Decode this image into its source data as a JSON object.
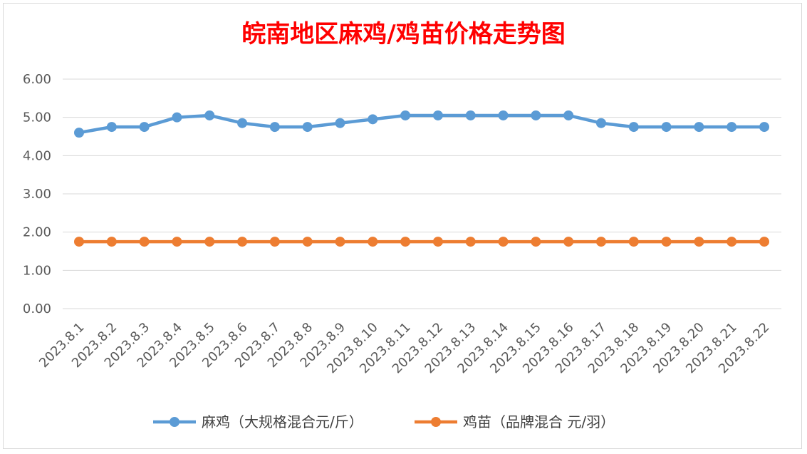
{
  "chart_data": {
    "type": "line",
    "title": "皖南地区麻鸡/鸡苗价格走势图",
    "categories": [
      "2023.8.1",
      "2023.8.2",
      "2023.8.3",
      "2023.8.4",
      "2023.8.5",
      "2023.8.6",
      "2023.8.7",
      "2023.8.8",
      "2023.8.9",
      "2023.8.10",
      "2023.8.11",
      "2023.8.12",
      "2023.8.13",
      "2023.8.14",
      "2023.8.15",
      "2023.8.16",
      "2023.8.17",
      "2023.8.18",
      "2023.8.19",
      "2023.8.20",
      "2023.8.21",
      "2023.8.22"
    ],
    "series": [
      {
        "name": "麻鸡（大规格混合元/斤）",
        "color": "#5b9bd5",
        "values": [
          4.6,
          4.75,
          4.75,
          5.0,
          5.05,
          4.85,
          4.75,
          4.75,
          4.85,
          4.95,
          5.05,
          5.05,
          5.05,
          5.05,
          5.05,
          5.05,
          4.85,
          4.75,
          4.75,
          4.75,
          4.75,
          4.75
        ]
      },
      {
        "name": "鸡苗（品牌混合 元/羽）",
        "color": "#ed7d31",
        "values": [
          1.75,
          1.75,
          1.75,
          1.75,
          1.75,
          1.75,
          1.75,
          1.75,
          1.75,
          1.75,
          1.75,
          1.75,
          1.75,
          1.75,
          1.75,
          1.75,
          1.75,
          1.75,
          1.75,
          1.75,
          1.75,
          1.75
        ]
      }
    ],
    "y_ticks": [
      "0.00",
      "1.00",
      "2.00",
      "3.00",
      "4.00",
      "5.00",
      "6.00"
    ],
    "ylim": [
      0,
      6
    ],
    "grid": true,
    "legend_position": "bottom",
    "title_color": "#ff0000"
  }
}
